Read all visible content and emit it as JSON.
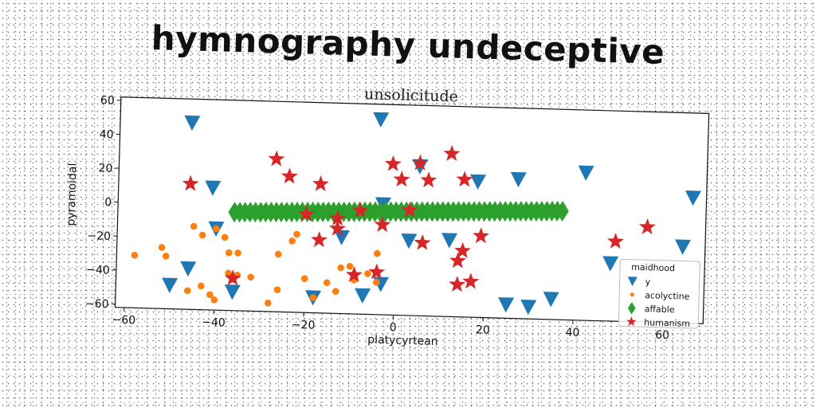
{
  "chart_data": {
    "type": "scatter",
    "title": "hymnography undeceptive",
    "subtitle": "unsolicitude",
    "xlabel": "platycyrtean",
    "ylabel": "pyramoidal",
    "xlim": [
      -62,
      69
    ],
    "ylim": [
      -62,
      62
    ],
    "xticks": [
      -60,
      -40,
      -20,
      0,
      20,
      40,
      60
    ],
    "xtick_labels": [
      "−60",
      "−40",
      "−20",
      "0",
      "20",
      "40",
      "60"
    ],
    "yticks": [
      -60,
      -40,
      -20,
      0,
      20,
      40,
      60
    ],
    "ytick_labels": [
      "−60",
      "−40",
      "−20",
      "0",
      "20",
      "40",
      "60"
    ],
    "grid": false,
    "legend": {
      "title": "maidhood",
      "position": "lower-right"
    },
    "series": [
      {
        "name": "y",
        "marker": "triangle-down",
        "color": "#1f77b4",
        "points": [
          [
            -46,
            48
          ],
          [
            -4,
            53
          ],
          [
            -41,
            10
          ],
          [
            -40,
            -14
          ],
          [
            -46,
            -38
          ],
          [
            -50,
            -48
          ],
          [
            -36,
            -51
          ],
          [
            -18,
            -53
          ],
          [
            -12,
            -17
          ],
          [
            -7,
            -51
          ],
          [
            -3,
            -44
          ],
          [
            -3,
            3
          ],
          [
            3,
            -18
          ],
          [
            5,
            26
          ],
          [
            12,
            -17
          ],
          [
            18,
            18
          ],
          [
            27,
            20
          ],
          [
            25,
            -54
          ],
          [
            30,
            -55
          ],
          [
            35,
            -50
          ],
          [
            42,
            25
          ],
          [
            48,
            -28
          ],
          [
            64,
            -17
          ],
          [
            66,
            12
          ]
        ]
      },
      {
        "name": "acolyctine",
        "marker": "circle",
        "color": "#ff7f0e",
        "points": [
          [
            -58,
            -31
          ],
          [
            -52,
            -26
          ],
          [
            -51,
            -31
          ],
          [
            -46,
            -51
          ],
          [
            -43,
            -48
          ],
          [
            -41,
            -53
          ],
          [
            -40,
            -56
          ],
          [
            -38,
            -19
          ],
          [
            -40,
            -14
          ],
          [
            -37,
            -28
          ],
          [
            -35,
            -28
          ],
          [
            -37,
            -40
          ],
          [
            -35,
            -41
          ],
          [
            -32,
            -42
          ],
          [
            -28,
            -57
          ],
          [
            -26,
            -49
          ],
          [
            -26,
            -28
          ],
          [
            -23,
            -20
          ],
          [
            -22,
            -16
          ],
          [
            -20,
            -42
          ],
          [
            -18,
            -53
          ],
          [
            -15,
            -44
          ],
          [
            -13,
            -49
          ],
          [
            -12,
            -35
          ],
          [
            -10,
            -34
          ],
          [
            -9,
            -42
          ],
          [
            -6,
            -38
          ],
          [
            -4,
            -26
          ],
          [
            -4,
            -43
          ],
          [
            -45,
            -13
          ],
          [
            -43,
            -18
          ]
        ]
      },
      {
        "name": "affable",
        "marker": "thin-diamond",
        "color": "#2ca02c",
        "x_range": [
          -36,
          37
        ],
        "count": 64,
        "y_start": -4,
        "y_end": 2
      },
      {
        "name": "humanism",
        "marker": "star",
        "color": "#d62728",
        "points": [
          [
            -46,
            12
          ],
          [
            -27,
            28
          ],
          [
            -24,
            18
          ],
          [
            -17,
            14
          ],
          [
            -20,
            -4
          ],
          [
            -17,
            -19
          ],
          [
            -13,
            -6
          ],
          [
            -13,
            -12
          ],
          [
            -8,
            -1
          ],
          [
            -9,
            -39
          ],
          [
            -4,
            -37
          ],
          [
            -3,
            -9
          ],
          [
            -1,
            27
          ],
          [
            1,
            18
          ],
          [
            3,
            0
          ],
          [
            5,
            28
          ],
          [
            6,
            -19
          ],
          [
            7,
            18
          ],
          [
            12,
            34
          ],
          [
            15,
            19
          ],
          [
            14,
            -29
          ],
          [
            15,
            -23
          ],
          [
            17,
            -41
          ],
          [
            14,
            -43
          ],
          [
            19,
            -14
          ],
          [
            49,
            -15
          ],
          [
            56,
            -6
          ],
          [
            -36,
            -43
          ]
        ]
      }
    ]
  }
}
